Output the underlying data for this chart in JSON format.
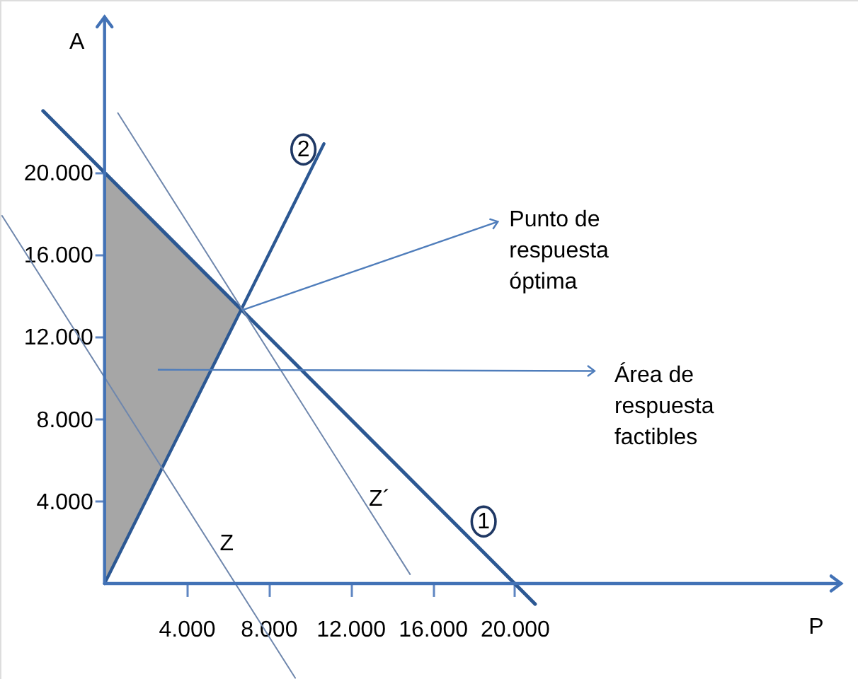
{
  "chart_data": {
    "type": "line",
    "xlabel": "P",
    "ylabel": "A",
    "xlim": [
      -5100,
      36750
    ],
    "ylim": [
      -4650,
      28400
    ],
    "xticks": [
      {
        "value": 4000,
        "label": "4.000"
      },
      {
        "value": 8000,
        "label": "8.000"
      },
      {
        "value": 12000,
        "label": "12.000"
      },
      {
        "value": 16000,
        "label": "16.000"
      },
      {
        "value": 20000,
        "label": "20.000"
      }
    ],
    "yticks": [
      {
        "value": 4000,
        "label": "4.000"
      },
      {
        "value": 8000,
        "label": "8.000"
      },
      {
        "value": 12000,
        "label": "12.000"
      },
      {
        "value": 16000,
        "label": "16.000"
      },
      {
        "value": 20000,
        "label": "20.000"
      }
    ],
    "series": [
      {
        "name": "1",
        "color": "#2c5893",
        "x": [
          -3000,
          0,
          6700,
          21000
        ],
        "values": [
          23000,
          20000,
          13300,
          -1000
        ],
        "lower": [
          null,
          0,
          13300,
          null
        ],
        "upper": [
          null,
          20000,
          13300,
          null
        ]
      },
      {
        "name": "2",
        "color": "#2c5893",
        "x": [
          0,
          10700
        ],
        "values": [
          0,
          21400
        ]
      },
      {
        "name": "Z´",
        "color": "#6f87ad",
        "x": [
          650,
          14900
        ],
        "values": [
          22900,
          450
        ]
      },
      {
        "name": "Z",
        "color": "#6f87ad",
        "x": [
          -5000,
          9300
        ],
        "values": [
          17900,
          -4600
        ]
      }
    ],
    "annotations": [
      {
        "text": "Punto de\nrespuesta\nóptima",
        "x": 6700,
        "y": 13300
      },
      "Área de\nrespuesta\nfactibles"
    ]
  }
}
